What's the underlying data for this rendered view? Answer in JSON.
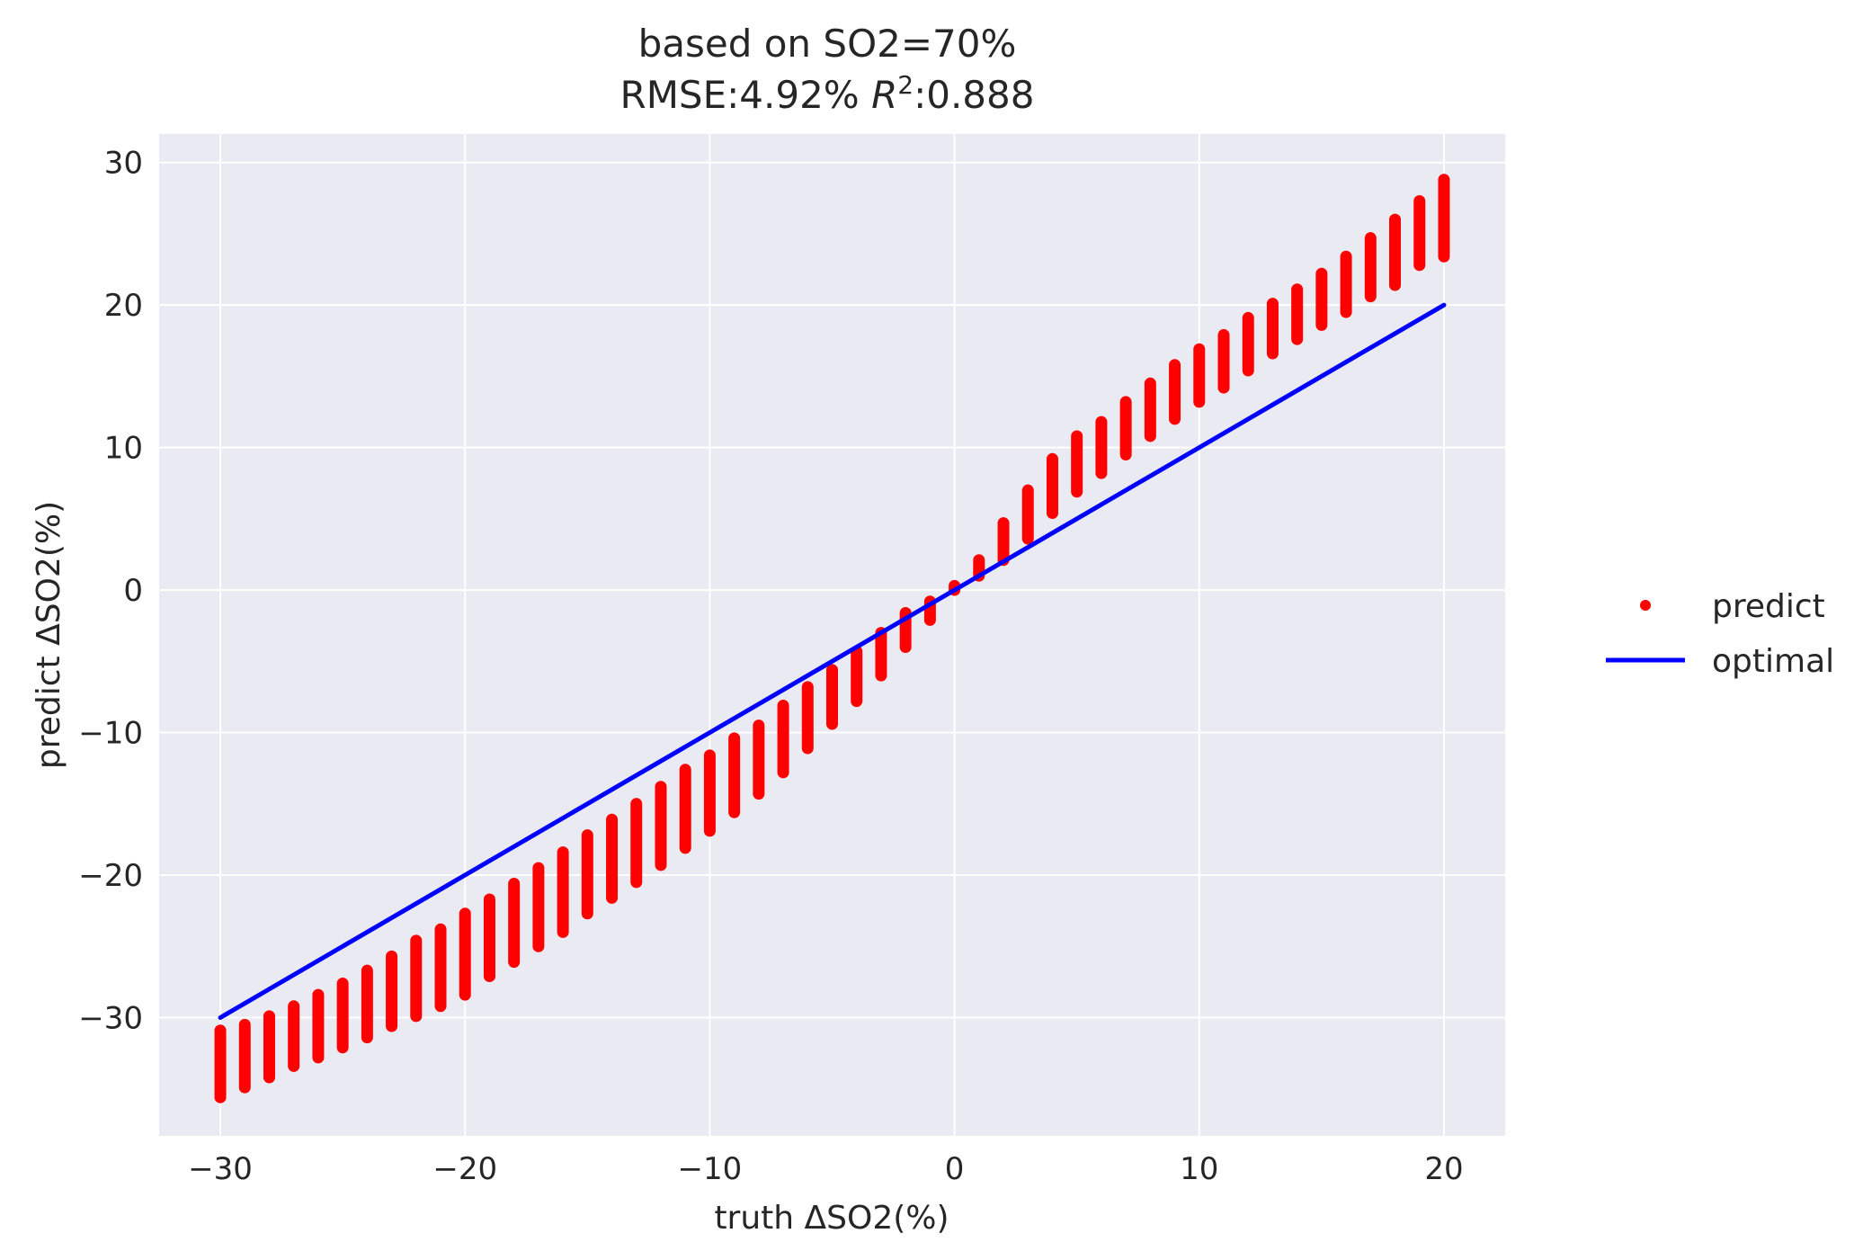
{
  "chart_data": {
    "type": "scatter",
    "title_line1": "based on SO2=70%",
    "title_line2_prefix": "RMSE:4.92% ",
    "title_line2_r": "R",
    "title_line2_sup": "2",
    "title_line2_suffix": ":0.888",
    "xlabel": "truth ΔSO2(%)",
    "ylabel": "predict ΔSO2(%)",
    "xlim": [
      -32.5,
      22.5
    ],
    "ylim": [
      -38.3,
      32.0
    ],
    "xticks": [
      -30,
      -20,
      -10,
      0,
      10,
      20
    ],
    "yticks": [
      -30,
      -20,
      -10,
      0,
      10,
      20,
      30
    ],
    "xtick_labels": [
      "−30",
      "−20",
      "−10",
      "0",
      "10",
      "20"
    ],
    "ytick_labels": [
      "−30",
      "−20",
      "−10",
      "0",
      "10",
      "20",
      "30"
    ],
    "grid": true,
    "legend_position": "right, outside plot",
    "colors": {
      "background": "#eaeaf2",
      "grid": "#ffffff",
      "predict": "#ff0000",
      "optimal": "#0000ff"
    },
    "series": [
      {
        "name": "predict",
        "marker": "dot",
        "x": [
          -30,
          -29,
          -28,
          -27,
          -26,
          -25,
          -24,
          -23,
          -22,
          -21,
          -20,
          -19,
          -18,
          -17,
          -16,
          -15,
          -14,
          -13,
          -12,
          -11,
          -10,
          -9,
          -8,
          -7,
          -6,
          -5,
          -4,
          -3,
          -2,
          -1,
          0,
          1,
          2,
          3,
          4,
          5,
          6,
          7,
          8,
          9,
          10,
          11,
          12,
          13,
          14,
          15,
          16,
          17,
          18,
          19,
          20
        ],
        "y_min": [
          -35.6,
          -34.9,
          -34.2,
          -33.4,
          -32.8,
          -32.1,
          -31.4,
          -30.6,
          -29.9,
          -29.2,
          -28.4,
          -27.1,
          -26.1,
          -25.0,
          -24.0,
          -22.7,
          -21.6,
          -20.5,
          -19.3,
          -18.1,
          -16.9,
          -15.6,
          -14.3,
          -12.8,
          -11.1,
          -9.4,
          -7.8,
          -6.0,
          -4.0,
          -2.1,
          0.0,
          1.0,
          2.1,
          3.6,
          5.4,
          6.9,
          8.2,
          9.5,
          10.8,
          12.0,
          13.2,
          14.2,
          15.4,
          16.6,
          17.6,
          18.6,
          19.5,
          20.6,
          21.4,
          22.8,
          23.4
        ],
        "y_max": [
          -30.9,
          -30.5,
          -29.9,
          -29.2,
          -28.4,
          -27.6,
          -26.7,
          -25.7,
          -24.6,
          -23.8,
          -22.7,
          -21.7,
          -20.6,
          -19.5,
          -18.4,
          -17.2,
          -16.1,
          -15.0,
          -13.8,
          -12.6,
          -11.6,
          -10.4,
          -9.5,
          -8.1,
          -6.8,
          -5.6,
          -4.3,
          -3.0,
          -1.6,
          -0.8,
          0.3,
          2.1,
          4.7,
          7.0,
          9.2,
          10.8,
          11.8,
          13.2,
          14.5,
          15.8,
          16.9,
          17.9,
          19.1,
          20.1,
          21.1,
          22.2,
          23.4,
          24.7,
          26.0,
          27.3,
          28.8
        ]
      },
      {
        "name": "optimal",
        "marker": "line",
        "x": [
          -30,
          20
        ],
        "y": [
          -30,
          20
        ]
      }
    ]
  },
  "legend": {
    "predict_label": "predict",
    "optimal_label": "optimal"
  }
}
